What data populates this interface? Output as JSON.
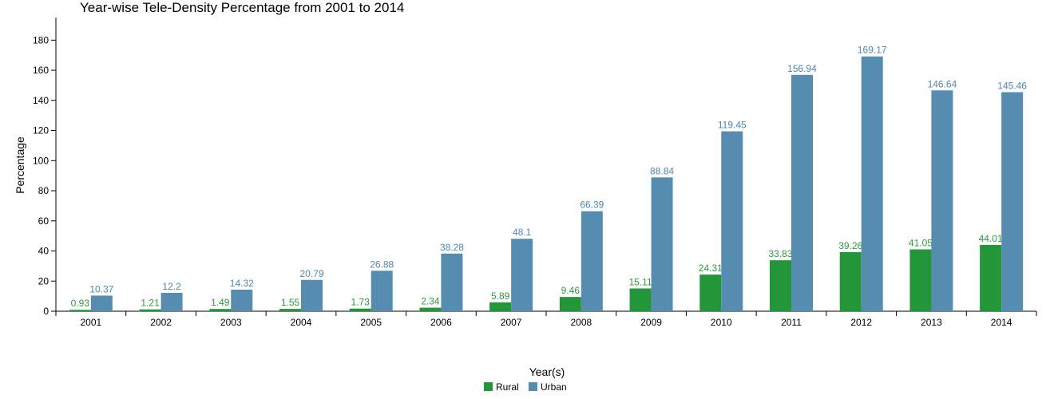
{
  "chart_data": {
    "type": "bar",
    "title": "Year-wise Tele-Density Percentage from 2001 to 2014",
    "x_label": "Year(s)",
    "y_label": "Percentage",
    "categories": [
      "2001",
      "2002",
      "2003",
      "2004",
      "2005",
      "2006",
      "2007",
      "2008",
      "2009",
      "2010",
      "2011",
      "2012",
      "2013",
      "2014"
    ],
    "series": [
      {
        "name": "Rural",
        "color": "#229638",
        "label_color": "#2e9a3e",
        "values": [
          0.93,
          1.21,
          1.49,
          1.55,
          1.73,
          2.34,
          5.89,
          9.46,
          15.11,
          24.31,
          33.83,
          39.26,
          41.05,
          44.01
        ]
      },
      {
        "name": "Urban",
        "color": "#568cb0",
        "label_color": "#4f86b0",
        "values": [
          10.37,
          12.2,
          14.32,
          20.79,
          26.88,
          38.28,
          48.1,
          66.39,
          88.84,
          119.45,
          156.94,
          169.17,
          146.64,
          145.46
        ]
      }
    ],
    "ylim": [
      0,
      195
    ],
    "yticks": [
      0,
      20,
      40,
      60,
      80,
      100,
      120,
      140,
      160,
      180
    ],
    "grid": false
  }
}
